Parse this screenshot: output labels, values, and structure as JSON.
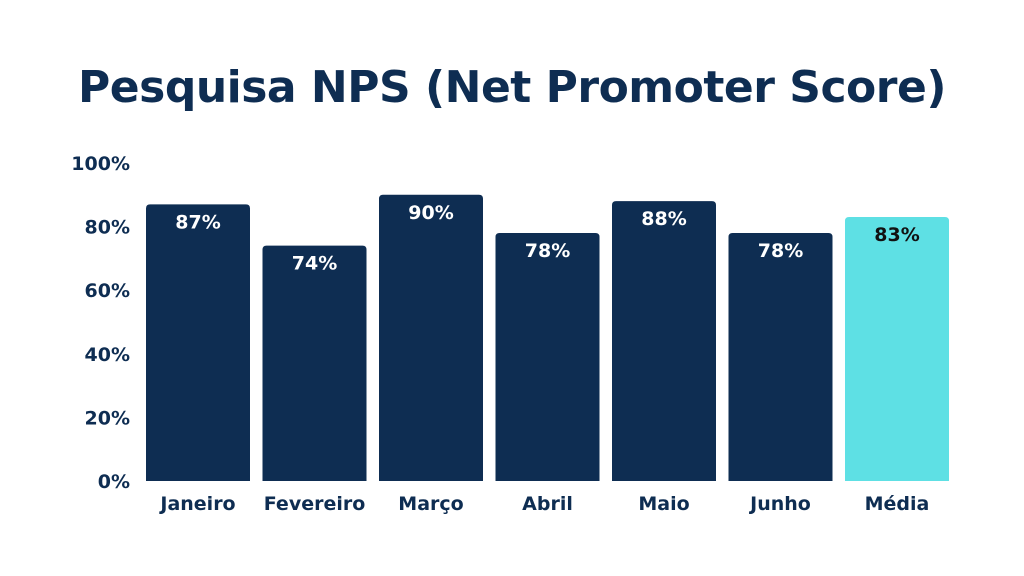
{
  "chart_data": {
    "type": "bar",
    "title": "Pesquisa NPS (Net Promoter Score)",
    "xlabel": "",
    "ylabel": "",
    "ylim": [
      0,
      100
    ],
    "yticks": [
      0,
      20,
      40,
      60,
      80,
      100
    ],
    "ytick_labels": [
      "0%",
      "20%",
      "40%",
      "60%",
      "80%",
      "100%"
    ],
    "grid": false,
    "legend": "none",
    "categories": [
      "Janeiro",
      "Fevereiro",
      "Março",
      "Abril",
      "Maio",
      "Junho",
      "Média"
    ],
    "values": [
      87,
      74,
      90,
      78,
      88,
      78,
      83
    ],
    "data_labels": [
      "87%",
      "74%",
      "90%",
      "78%",
      "88%",
      "78%",
      "83%"
    ],
    "colors": {
      "bar": "#0e2d52",
      "highlight_bar": "#5ee0e4",
      "text": "#0e2d52",
      "label_on_bar": "#ffffff",
      "label_on_highlight": "#111111"
    },
    "highlight_category": "Média"
  }
}
